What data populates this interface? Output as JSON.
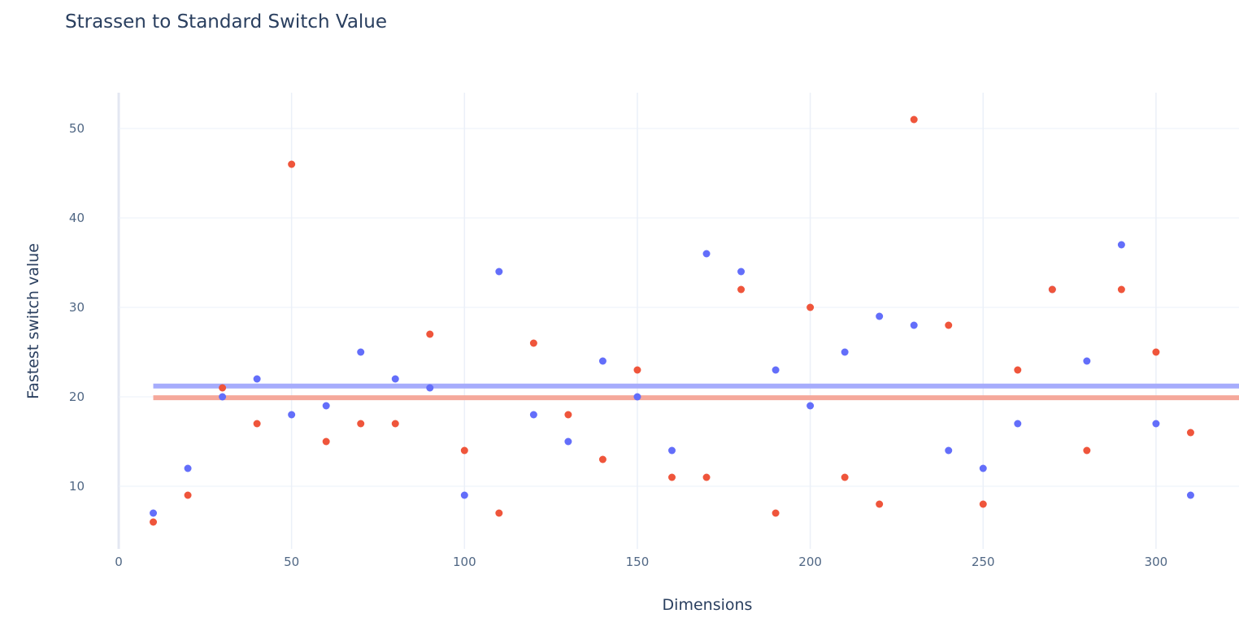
{
  "chart_data": {
    "type": "scatter",
    "title": "Strassen to Standard Switch Value",
    "xlabel": "Dimensions",
    "ylabel": "Fastest switch value",
    "xlim": [
      0,
      324
    ],
    "ylim": [
      3,
      54
    ],
    "xticks": [
      0,
      50,
      100,
      150,
      200,
      250,
      300
    ],
    "yticks": [
      10,
      20,
      30,
      40,
      50
    ],
    "grid": true,
    "legend": "none",
    "x": [
      10,
      20,
      30,
      40,
      50,
      60,
      70,
      80,
      90,
      100,
      110,
      120,
      130,
      140,
      150,
      160,
      170,
      180,
      190,
      200,
      210,
      220,
      230,
      240,
      250,
      260,
      270,
      280,
      290,
      300,
      310
    ],
    "series": [
      {
        "color": "#636efa",
        "values": [
          7,
          12,
          20,
          22,
          18,
          19,
          25,
          22,
          21,
          9,
          34,
          18,
          15,
          24,
          20,
          14,
          36,
          34,
          23,
          19,
          25,
          29,
          28,
          14,
          12,
          17,
          32,
          24,
          37,
          17,
          9
        ],
        "mean": 21.2
      },
      {
        "color": "#ef553b",
        "values": [
          6,
          9,
          21,
          17,
          46,
          15,
          17,
          17,
          27,
          14,
          7,
          26,
          18,
          13,
          23,
          11,
          11,
          32,
          7,
          30,
          11,
          8,
          51,
          28,
          8,
          23,
          32,
          14,
          32,
          25,
          16
        ],
        "mean": 19.9
      }
    ],
    "mean_lines": [
      {
        "y": 21.2,
        "color": "#a6acfc",
        "x_start": 10
      },
      {
        "y": 19.9,
        "color": "#f5a89b",
        "x_start": 10
      }
    ]
  }
}
